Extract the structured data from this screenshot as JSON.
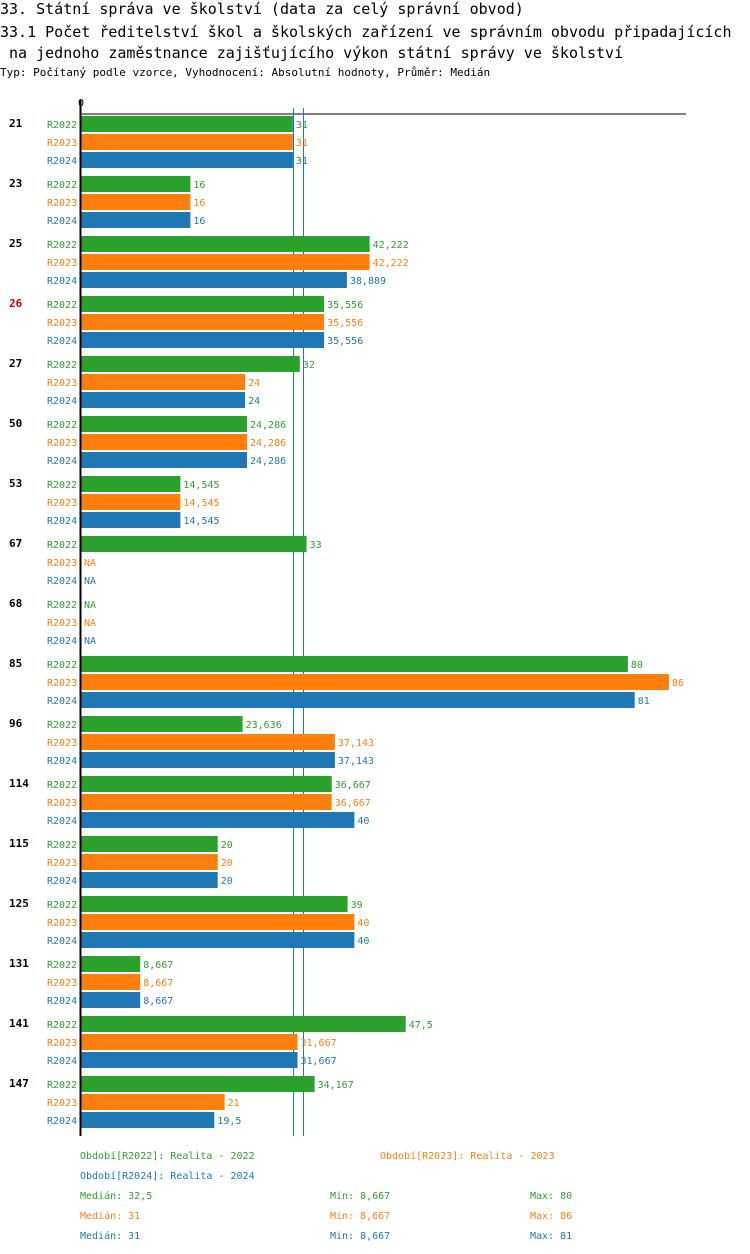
{
  "header": {
    "title": "33. Státní správa ve školství (data za celý správní obvod)",
    "subtitle_line1": "33.1 Počet ředitelství škol a školských zařízení ve správním obvodu připadajících",
    "subtitle_line2": " na jednoho zaměstnance zajišťujícího výkon státní správy ve školství",
    "type_line": "Typ: Počítaný podle vzorce, Vyhodnocení: Absolutní hodnoty, Průměr: Medián"
  },
  "colors": {
    "R2022": "#2ca02c",
    "R2023": "#ff7f0e",
    "R2024": "#1f77b4",
    "highlight_label": "#cc0000"
  },
  "chart_data": {
    "type": "bar",
    "orientation": "horizontal",
    "zero_label": "0",
    "xlim": [
      0,
      88.5
    ],
    "series_names": [
      "R2022",
      "R2023",
      "R2024"
    ],
    "highlighted_category": "26",
    "categories": [
      "21",
      "23",
      "25",
      "26",
      "27",
      "50",
      "53",
      "67",
      "68",
      "85",
      "96",
      "114",
      "115",
      "125",
      "131",
      "141",
      "147"
    ],
    "values": {
      "R2022": [
        31,
        16,
        42.222,
        35.556,
        32,
        24.286,
        14.545,
        33,
        null,
        80,
        23.636,
        36.667,
        20,
        39,
        8.667,
        47.5,
        34.167
      ],
      "R2023": [
        31,
        16,
        42.222,
        35.556,
        24,
        24.286,
        14.545,
        null,
        null,
        86,
        37.143,
        36.667,
        20,
        40,
        8.667,
        31.667,
        21
      ],
      "R2024": [
        31,
        16,
        38.889,
        35.556,
        24,
        24.286,
        14.545,
        null,
        null,
        81,
        37.143,
        40,
        20,
        40,
        8.667,
        31.667,
        19.5
      ]
    },
    "labels": {
      "R2022": [
        "31",
        "16",
        "42,222",
        "35,556",
        "32",
        "24,286",
        "14,545",
        "33",
        "NA",
        "80",
        "23,636",
        "36,667",
        "20",
        "39",
        "8,667",
        "47,5",
        "34,167"
      ],
      "R2023": [
        "31",
        "16",
        "42,222",
        "35,556",
        "24",
        "24,286",
        "14,545",
        "NA",
        "NA",
        "86",
        "37,143",
        "36,667",
        "20",
        "40",
        "8,667",
        "31,667",
        "21"
      ],
      "R2024": [
        "31",
        "16",
        "38,889",
        "35,556",
        "24",
        "24,286",
        "14,545",
        "NA",
        "NA",
        "81",
        "37,143",
        "40",
        "20",
        "40",
        "8,667",
        "31,667",
        "19,5"
      ]
    },
    "median_lines": [
      31,
      32.5
    ]
  },
  "legend": {
    "period_2022": "Období[R2022]: Realita - 2022",
    "period_2023": "Období[R2023]: Realita - 2023",
    "period_2024": "Období[R2024]: Realita - 2024",
    "stats": [
      {
        "median": "Medián: 32,5",
        "min": "Min: 8,667",
        "max": "Max: 80"
      },
      {
        "median": "Medián: 31",
        "min": "Min: 8,667",
        "max": "Max: 86"
      },
      {
        "median": "Medián: 31",
        "min": "Min: 8,667",
        "max": "Max: 81"
      }
    ]
  }
}
